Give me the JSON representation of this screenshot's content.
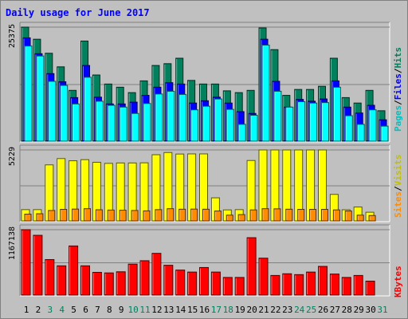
{
  "chart_data": [
    {
      "type": "bar",
      "title": "Daily usage for June 2017",
      "ytick": "25375",
      "series": [
        {
          "name": "Hits",
          "color": "#00805c",
          "values": [
            25375,
            22700,
            19600,
            16600,
            11400,
            22300,
            14800,
            12800,
            12100,
            10900,
            13500,
            16900,
            17300,
            18500,
            13600,
            12800,
            12800,
            11300,
            10900,
            11400,
            25200,
            20400,
            10300,
            11600,
            11600,
            12300,
            18500,
            9800,
            8600,
            11400,
            6900
          ]
        },
        {
          "name": "Files",
          "color": "#0000ff",
          "values": [
            23000,
            19500,
            15100,
            13300,
            9800,
            16900,
            9900,
            8400,
            8400,
            8800,
            10300,
            12100,
            13100,
            12800,
            8600,
            9100,
            9900,
            8600,
            6700,
            6300,
            22700,
            13400,
            7700,
            9400,
            9000,
            9500,
            13500,
            7700,
            6400,
            8100,
            4900
          ]
        },
        {
          "name": "Pages",
          "color": "#00ffff",
          "values": [
            21200,
            19000,
            13400,
            12500,
            8400,
            14300,
            9000,
            8100,
            7700,
            6300,
            8500,
            10600,
            11200,
            10500,
            7100,
            7900,
            9500,
            7200,
            3900,
            5900,
            21400,
            11200,
            7700,
            8900,
            8600,
            8700,
            12100,
            5800,
            3900,
            7100,
            3500
          ]
        }
      ]
    },
    {
      "type": "bar",
      "ytick": "5229",
      "series": [
        {
          "name": "Visits",
          "color": "#ffff00",
          "values": [
            880,
            880,
            4140,
            4600,
            4440,
            4520,
            4330,
            4250,
            4280,
            4280,
            4290,
            4880,
            5040,
            4930,
            4940,
            4940,
            1740,
            860,
            880,
            4460,
            5229,
            5229,
            5229,
            5229,
            5229,
            5229,
            1990,
            870,
            1070,
            690,
            0
          ]
        },
        {
          "name": "Sites",
          "color": "#ff8c00",
          "values": [
            550,
            580,
            820,
            900,
            920,
            950,
            870,
            850,
            840,
            820,
            790,
            880,
            950,
            910,
            920,
            910,
            780,
            480,
            520,
            860,
            950,
            940,
            910,
            900,
            900,
            900,
            860,
            780,
            480,
            450,
            0
          ]
        }
      ]
    },
    {
      "type": "bar",
      "ytick": "1167138",
      "series": [
        {
          "name": "KBytes",
          "color": "#ff0000",
          "values": [
            1167138,
            1068000,
            640000,
            530000,
            880000,
            530000,
            415000,
            405000,
            425000,
            560000,
            620000,
            750000,
            540000,
            455000,
            420000,
            500000,
            420000,
            325000,
            325000,
            1026000,
            665000,
            360000,
            390000,
            375000,
            420000,
            520000,
            385000,
            325000,
            360000,
            260000,
            0
          ]
        }
      ]
    }
  ],
  "x_labels": [
    "1",
    "2",
    "3",
    "4",
    "5",
    "6",
    "7",
    "8",
    "9",
    "10",
    "11",
    "12",
    "13",
    "14",
    "15",
    "16",
    "17",
    "18",
    "19",
    "20",
    "21",
    "22",
    "23",
    "24",
    "25",
    "26",
    "27",
    "28",
    "29",
    "30",
    "31"
  ],
  "x_label_colors": [
    "#000000",
    "#000000",
    "#00805c",
    "#00805c",
    "#000000",
    "#000000",
    "#000000",
    "#000000",
    "#000000",
    "#00805c",
    "#00805c",
    "#000000",
    "#000000",
    "#000000",
    "#000000",
    "#000000",
    "#00805c",
    "#00805c",
    "#000000",
    "#000000",
    "#000000",
    "#000000",
    "#000000",
    "#00805c",
    "#00805c",
    "#000000",
    "#000000",
    "#000000",
    "#000000",
    "#000000",
    "#00805c"
  ],
  "labels": {
    "top": [
      {
        "text": "Pages",
        "color": "#00c0c0"
      },
      {
        "text": "/",
        "color": "#000000"
      },
      {
        "text": "Files",
        "color": "#0000ff"
      },
      {
        "text": "/",
        "color": "#000000"
      },
      {
        "text": "Hits",
        "color": "#00805c"
      }
    ],
    "mid": [
      {
        "text": "Sites",
        "color": "#ff8c00"
      },
      {
        "text": "/",
        "color": "#000000"
      },
      {
        "text": "Visits",
        "color": "#c0c000"
      }
    ],
    "bottom": [
      {
        "text": "KBytes",
        "color": "#ff0000"
      }
    ]
  },
  "colors": {
    "background": "#c0c0c0",
    "plot_background": "#c0c0c0",
    "title": "#0000ff"
  }
}
